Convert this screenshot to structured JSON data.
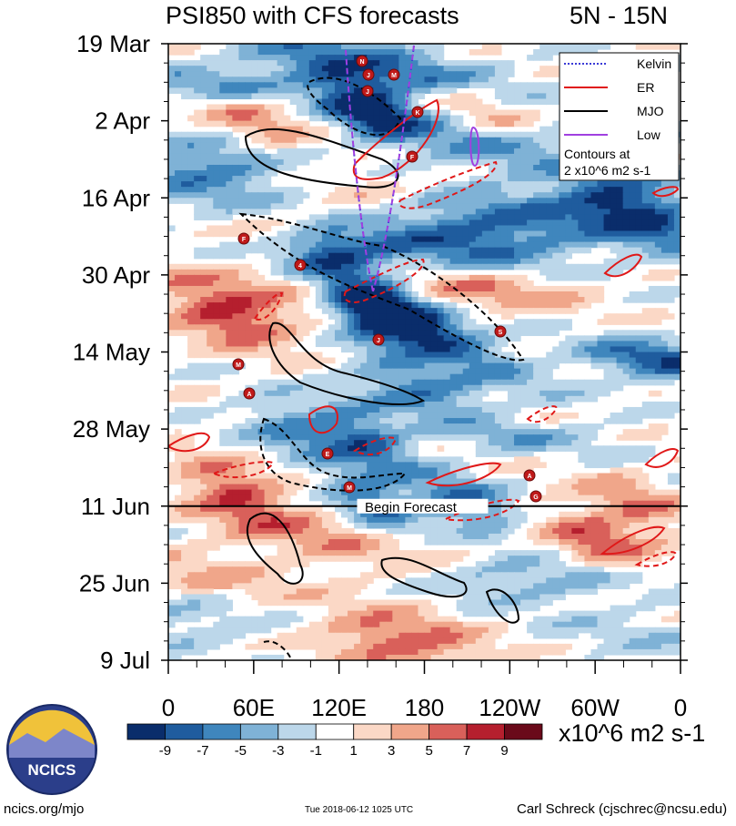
{
  "header": {
    "title": "PSI850 with CFS forecasts",
    "region": "5N - 15N"
  },
  "chart_data": {
    "type": "heatmap",
    "title": "PSI850 with CFS forecasts",
    "subtitle": "5N - 15N",
    "x_tick_labels": [
      "0",
      "60E",
      "120E",
      "180",
      "120W",
      "60W",
      "0"
    ],
    "x_range": [
      0,
      360
    ],
    "y_tick_labels": [
      "19 Mar",
      "2 Apr",
      "16 Apr",
      "30 Apr",
      "14 May",
      "28 May",
      "11 Jun",
      "25 Jun",
      "9 Jul"
    ],
    "y_range": [
      "19 Mar",
      "9 Jul"
    ],
    "annotation": "Begin Forecast",
    "forecast_start": "11 Jun",
    "colorbar": {
      "labels": [
        "-9",
        "-7",
        "-5",
        "-3",
        "-1",
        "1",
        "3",
        "5",
        "7",
        "9"
      ],
      "colors": [
        "#0a2d6b",
        "#1f5c9e",
        "#3f86bd",
        "#7fb2d6",
        "#bcd7ea",
        "#ffffff",
        "#fbd8c6",
        "#f0a68a",
        "#d9605a",
        "#b51f2e",
        "#6a0a1a"
      ],
      "units": "x10^6 m2 s-1"
    },
    "legend": {
      "placement": "top-right",
      "entries": [
        {
          "name": "Kelvin",
          "color": "#3a3ad6",
          "style": "dotted"
        },
        {
          "name": "ER",
          "color": "#e01818",
          "style": "solid"
        },
        {
          "name": "MJO",
          "color": "#000000",
          "style": "solid"
        },
        {
          "name": "Low",
          "color": "#a040e0",
          "style": "solid"
        }
      ],
      "note_line1": "Contours at",
      "note_line2": "2 x10^6 m2 s-1"
    },
    "storm_markers": [
      "N",
      "J",
      "M",
      "J",
      "K",
      "F",
      "F",
      "4",
      "J",
      "S",
      "M",
      "A",
      "E",
      "M",
      "A",
      "G"
    ]
  },
  "footer": {
    "logo_text": "NCICS",
    "left": "ncics.org/mjo",
    "center": "Tue 2018-06-12 1025 UTC",
    "right": "Carl Schreck (cjschrec@ncsu.edu)"
  }
}
